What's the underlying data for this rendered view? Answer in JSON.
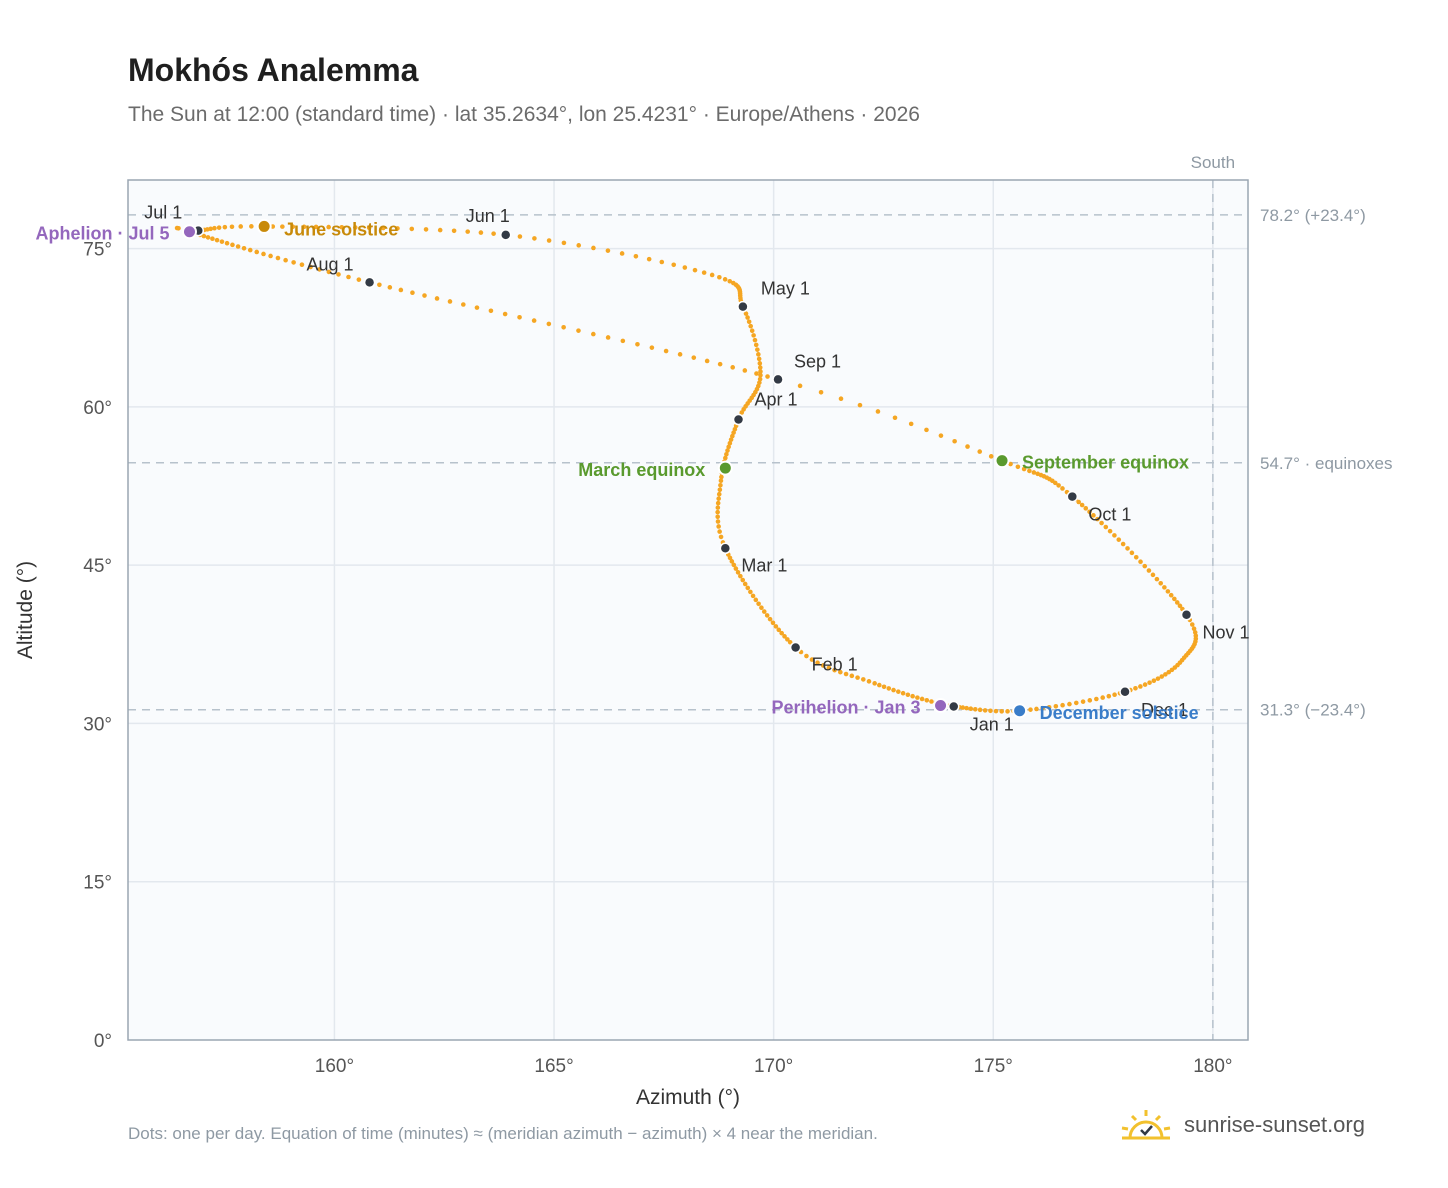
{
  "title": "Mokhós Analemma",
  "subtitle": "The Sun at 12:00 (standard time) · lat 35.2634°, lon 25.4231° · Europe/Athens · 2026",
  "footnote": "Dots: one per day. Equation of time (minutes) ≈ (meridian azimuth − azimuth) × 4 near the meridian.",
  "brand": "sunrise-sunset.org",
  "colors": {
    "curve": "#f5a623",
    "month_dot": "#333a45",
    "june_solstice": "#c88a0a",
    "december_solstice": "#3a7dc9",
    "equinox": "#5a9a2e",
    "apsis": "#9467bd",
    "grid": "#e3e8ee",
    "plot_bg": "#f9fbfd",
    "reference": "#b7c2cc"
  },
  "chart_data": {
    "type": "scatter",
    "title": "Mokhós Analemma",
    "subtitle": "The Sun at 12:00 (standard time) · lat 35.2634°, lon 25.4231° · Europe/Athens · 2026",
    "xlabel": "Azimuth (°)",
    "ylabel": "Altitude (°)",
    "xlim": [
      155.3,
      180.8
    ],
    "ylim": [
      0,
      81.5
    ],
    "xticks": [
      160,
      165,
      170,
      175,
      180
    ],
    "xtick_labels": [
      "160°",
      "165°",
      "170°",
      "175°",
      "180°"
    ],
    "yticks": [
      0,
      15,
      30,
      45,
      60,
      75
    ],
    "ytick_labels": [
      "0°",
      "15°",
      "30°",
      "45°",
      "60°",
      "75°"
    ],
    "grid": true,
    "meridian": {
      "x": 180,
      "label": "South"
    },
    "reference_lines": [
      {
        "y": 78.2,
        "label": "78.2° (+23.4°)"
      },
      {
        "y": 54.7,
        "label": "54.7° · equinoxes"
      },
      {
        "y": 31.3,
        "label": "31.3° (−23.4°)"
      }
    ],
    "month_points": [
      {
        "label": "Jan 1",
        "azimuth": 174.1,
        "altitude": 31.6
      },
      {
        "label": "Feb 1",
        "azimuth": 170.5,
        "altitude": 37.2
      },
      {
        "label": "Mar 1",
        "azimuth": 168.9,
        "altitude": 46.6
      },
      {
        "label": "Apr 1",
        "azimuth": 169.2,
        "altitude": 58.8
      },
      {
        "label": "May 1",
        "azimuth": 169.3,
        "altitude": 69.5
      },
      {
        "label": "Jun 1",
        "azimuth": 163.9,
        "altitude": 76.3
      },
      {
        "label": "Jul 1",
        "azimuth": 156.9,
        "altitude": 76.7
      },
      {
        "label": "Aug 1",
        "azimuth": 160.8,
        "altitude": 71.8
      },
      {
        "label": "Sep 1",
        "azimuth": 170.1,
        "altitude": 62.6
      },
      {
        "label": "Oct 1",
        "azimuth": 176.8,
        "altitude": 51.5
      },
      {
        "label": "Nov 1",
        "azimuth": 179.4,
        "altitude": 40.3
      },
      {
        "label": "Dec 1",
        "azimuth": 178.0,
        "altitude": 33.0
      }
    ],
    "events": [
      {
        "label": "June solstice",
        "azimuth": 158.4,
        "altitude": 77.1,
        "color": "june_solstice"
      },
      {
        "label": "December solstice",
        "azimuth": 175.6,
        "altitude": 31.2,
        "color": "december_solstice"
      },
      {
        "label": "March equinox",
        "azimuth": 168.9,
        "altitude": 54.2,
        "color": "equinox"
      },
      {
        "label": "September equinox",
        "azimuth": 175.2,
        "altitude": 54.9,
        "color": "equinox"
      },
      {
        "label": "Aphelion · Jul 5",
        "azimuth": 156.7,
        "altitude": 76.6,
        "color": "apsis"
      },
      {
        "label": "Perihelion · Jan 3",
        "azimuth": 173.8,
        "altitude": 31.7,
        "color": "apsis"
      }
    ]
  }
}
